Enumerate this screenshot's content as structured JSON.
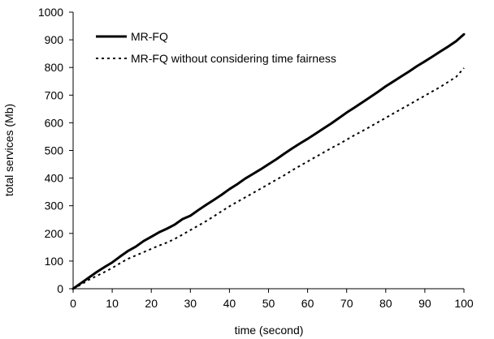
{
  "chart_data": {
    "type": "line",
    "title": "",
    "xlabel": "time (second)",
    "ylabel": "total services (Mb)",
    "xlim": [
      0,
      100
    ],
    "ylim": [
      0,
      1000
    ],
    "xticks": [
      0,
      10,
      20,
      30,
      40,
      50,
      60,
      70,
      80,
      90,
      100
    ],
    "yticks": [
      0,
      100,
      200,
      300,
      400,
      500,
      600,
      700,
      800,
      900,
      1000
    ],
    "grid": false,
    "legend_position": "top-left",
    "series": [
      {
        "name": "MR-FQ",
        "style": "solid",
        "color": "#000000",
        "x": [
          0,
          2,
          4,
          6,
          8,
          10,
          12,
          14,
          16,
          18,
          20,
          22,
          24,
          26,
          28,
          30,
          32,
          34,
          36,
          38,
          40,
          42,
          44,
          46,
          48,
          50,
          52,
          54,
          56,
          58,
          60,
          62,
          64,
          66,
          68,
          70,
          72,
          74,
          76,
          78,
          80,
          82,
          84,
          86,
          88,
          90,
          92,
          94,
          96,
          98,
          100
        ],
        "y": [
          0,
          20,
          40,
          60,
          78,
          95,
          116,
          136,
          152,
          172,
          188,
          204,
          217,
          232,
          252,
          264,
          284,
          303,
          321,
          340,
          360,
          378,
          398,
          415,
          432,
          450,
          468,
          488,
          507,
          525,
          542,
          560,
          579,
          597,
          617,
          637,
          655,
          674,
          693,
          712,
          732,
          750,
          768,
          786,
          805,
          822,
          840,
          858,
          876,
          895,
          920
        ]
      },
      {
        "name": "MR-FQ without considering time fairness",
        "style": "dashed",
        "color": "#000000",
        "x": [
          0,
          2,
          4,
          6,
          8,
          10,
          12,
          14,
          16,
          18,
          20,
          22,
          24,
          26,
          28,
          30,
          32,
          34,
          36,
          38,
          40,
          42,
          44,
          46,
          48,
          50,
          52,
          54,
          56,
          58,
          60,
          62,
          64,
          66,
          68,
          70,
          72,
          74,
          76,
          78,
          80,
          82,
          84,
          86,
          88,
          90,
          92,
          94,
          96,
          98,
          100
        ],
        "y": [
          0,
          15,
          32,
          46,
          60,
          75,
          92,
          108,
          120,
          132,
          144,
          156,
          167,
          180,
          196,
          212,
          228,
          244,
          262,
          280,
          298,
          314,
          330,
          346,
          362,
          378,
          394,
          410,
          428,
          444,
          460,
          476,
          492,
          508,
          523,
          539,
          555,
          570,
          586,
          602,
          618,
          634,
          650,
          666,
          682,
          698,
          714,
          730,
          748,
          766,
          798
        ]
      }
    ]
  }
}
